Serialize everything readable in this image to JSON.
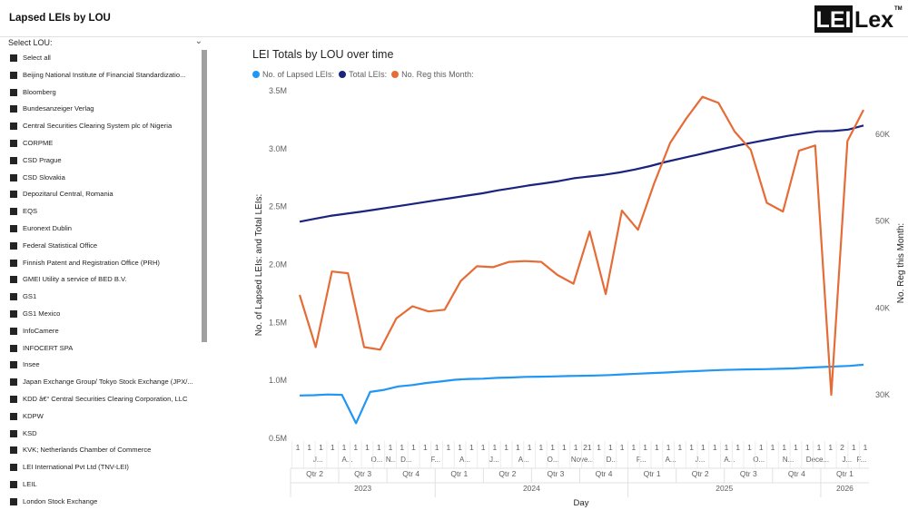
{
  "page": {
    "title": "Lapsed LEIs by LOU"
  },
  "logo": {
    "text_left": "LEI",
    "text_right": "Lex",
    "tm": "TM"
  },
  "slicer": {
    "header": "Select LOU:",
    "items": [
      "Select all",
      "Beijing National Institute of Financial Standardizatio...",
      "Bloomberg",
      "Bundesanzeiger Verlag",
      "Central Securities Clearing System plc of Nigeria",
      "CORPME",
      "CSD Prague",
      "CSD Slovakia",
      "Depozitarul Central, Romania",
      "EQS",
      "Euronext Dublin",
      "Federal Statistical Office",
      "Finnish Patent and Registration Office (PRH)",
      "GMEI Utility a service of BED B.V.",
      "GS1",
      "GS1 Mexico",
      "InfoCamere",
      "INFOCERT SPA",
      "Insee",
      "Japan Exchange Group/ Tokyo Stock Exchange (JPX/...",
      "KDD â€“ Central Securities Clearing Corporation, LLC",
      "KDPW",
      "KSD",
      "KVK; Netherlands Chamber of Commerce",
      "LEI International Pvt Ltd (TNV-LEI)",
      "LEIL",
      "London Stock Exchange"
    ]
  },
  "colors": {
    "lapsed": "#2196F3",
    "total": "#1A237E",
    "reg": "#E66C37"
  },
  "chart_data": {
    "type": "line",
    "title": "LEI Totals by LOU over time",
    "xlabel": "Day",
    "ylabel_left": "No. of Lapsed LEIs: and Total LEIs:",
    "ylabel_right": "No. Reg this Month:",
    "ylim_left": [
      500000,
      3500000
    ],
    "ylim_right": [
      25000,
      65000
    ],
    "yticks_left": [
      "3.5M",
      "3.0M",
      "2.5M",
      "2.0M",
      "1.5M",
      "1.0M",
      "0.5M"
    ],
    "yticks_right": [
      "60K",
      "50K",
      "40K",
      "30K"
    ],
    "x_day_labels": [
      "1",
      "1",
      "1",
      "1",
      "1",
      "1",
      "1",
      "1",
      "1",
      "1",
      "1",
      "1",
      "1",
      "1",
      "1",
      "1",
      "1",
      "1",
      "1",
      "1",
      "1",
      "1",
      "1",
      "1",
      "1",
      "21",
      "1",
      "1",
      "1",
      "1",
      "1",
      "1",
      "1",
      "1",
      "1",
      "1",
      "1",
      "1",
      "1",
      "1",
      "1",
      "1",
      "1",
      "1",
      "1",
      "1",
      "1",
      "2",
      "1",
      "1"
    ],
    "x_month_labels": [
      "",
      "J...",
      "",
      "A...",
      "",
      "O...",
      "N...",
      "D...",
      "",
      "F...",
      "",
      "A...",
      "",
      "J...",
      "",
      "A...",
      "",
      "O...",
      "",
      "Nove...",
      "",
      "D...",
      "",
      "F...",
      "",
      "A...",
      "",
      "J...",
      "",
      "A...",
      "",
      "O...",
      "",
      "N...",
      "",
      "Dece...",
      "",
      "J...",
      "F..."
    ],
    "quarters": [
      {
        "label": "Qtr 2",
        "year": "2023"
      },
      {
        "label": "Qtr 3",
        "year": "2023"
      },
      {
        "label": "Qtr 4",
        "year": "2023"
      },
      {
        "label": "Qtr 1",
        "year": "2024"
      },
      {
        "label": "Qtr 2",
        "year": "2024"
      },
      {
        "label": "Qtr 3",
        "year": "2024"
      },
      {
        "label": "Qtr 4",
        "year": "2024"
      },
      {
        "label": "Qtr 1",
        "year": "2025"
      },
      {
        "label": "Qtr 2",
        "year": "2025"
      },
      {
        "label": "Qtr 3",
        "year": "2025"
      },
      {
        "label": "Qtr 4",
        "year": "2025"
      },
      {
        "label": "Qtr 1",
        "year": "2026"
      }
    ],
    "years": [
      "2023",
      "2024",
      "2025",
      "2026"
    ],
    "series": [
      {
        "name": "No. of Lapsed LEIs:",
        "axis": "left",
        "values": [
          870000,
          872000,
          878000,
          875000,
          630000,
          900000,
          918000,
          948000,
          960000,
          978000,
          990000,
          1005000,
          1012000,
          1015000,
          1022000,
          1025000,
          1030000,
          1032000,
          1034000,
          1037000,
          1040000,
          1042000,
          1046000,
          1052000,
          1058000,
          1063000,
          1068000,
          1075000,
          1080000,
          1085000,
          1090000,
          1093000,
          1095000,
          1097000,
          1100000,
          1103000,
          1110000,
          1115000,
          1120000,
          1125000,
          1135000
        ]
      },
      {
        "name": "Total LEIs:",
        "axis": "left",
        "values": [
          2370000,
          2395000,
          2420000,
          2438000,
          2455000,
          2475000,
          2495000,
          2515000,
          2535000,
          2555000,
          2575000,
          2595000,
          2615000,
          2640000,
          2660000,
          2682000,
          2700000,
          2720000,
          2745000,
          2760000,
          2775000,
          2795000,
          2820000,
          2850000,
          2885000,
          2915000,
          2945000,
          2975000,
          3005000,
          3035000,
          3060000,
          3085000,
          3110000,
          3130000,
          3150000,
          3152000,
          3165000,
          3200000
        ]
      },
      {
        "name": "No. Reg this Month:",
        "axis": "right",
        "values": [
          41500,
          35500,
          44200,
          44000,
          35500,
          35200,
          38800,
          40200,
          39600,
          39800,
          43100,
          44800,
          44700,
          45300,
          45400,
          45300,
          43800,
          42800,
          48800,
          41600,
          51200,
          49000,
          54300,
          59000,
          61800,
          64300,
          63600,
          60300,
          58200,
          52100,
          51100,
          58100,
          58700,
          30000,
          59200,
          62800
        ]
      }
    ]
  }
}
